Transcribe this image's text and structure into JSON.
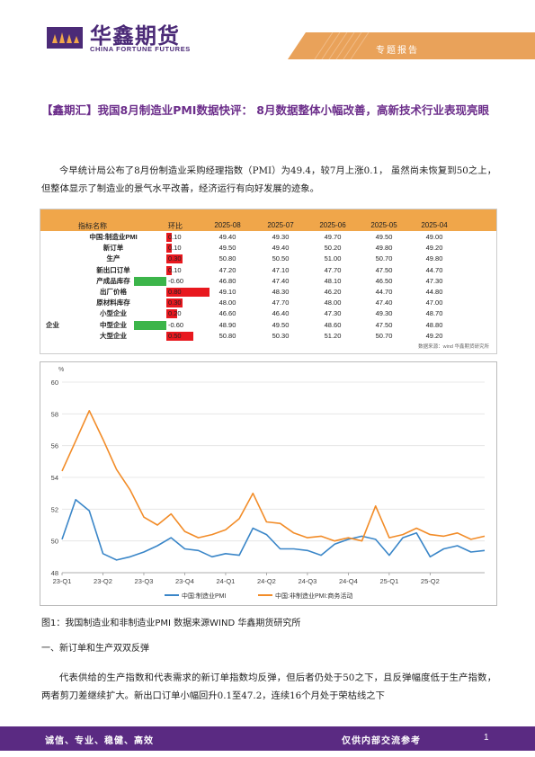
{
  "header": {
    "brand_cn": "华鑫期货",
    "brand_en": "CHINA FORTUNE FUTURES",
    "tag": "专题报告"
  },
  "title": "【鑫期汇】我国8月制造业PMI数据快评： 8月数据整体小幅改善，高新技术行业表现亮眼",
  "intro": "今早统计局公布了8月份制造业采购经理指数（PMI）为49.4，较7月上涨0.1， 虽然尚未恢复到50之上，但整体显示了制造业的景气水平改善，经济运行有向好发展的迹象。",
  "table": {
    "headers": [
      "指标名称",
      "环比",
      "2025-08",
      "2025-07",
      "2025-06",
      "2025-05",
      "2025-04"
    ],
    "rows": [
      {
        "group": "",
        "name": "中国:制造业PMI",
        "change": "0.10",
        "v": [
          "49.40",
          "49.30",
          "49.70",
          "49.50",
          "49.00"
        ],
        "dir": "up"
      },
      {
        "group": "",
        "name": "新订单",
        "change": "0.10",
        "v": [
          "49.50",
          "49.40",
          "50.20",
          "49.80",
          "49.20"
        ],
        "dir": "up"
      },
      {
        "group": "",
        "name": "生产",
        "change": "0.30",
        "v": [
          "50.80",
          "50.50",
          "51.00",
          "50.70",
          "49.80"
        ],
        "dir": "up"
      },
      {
        "group": "",
        "name": "新出口订单",
        "change": "0.10",
        "v": [
          "47.20",
          "47.10",
          "47.70",
          "47.50",
          "44.70"
        ],
        "dir": "up"
      },
      {
        "group": "",
        "name": "产成品库存",
        "change": "-0.60",
        "v": [
          "46.80",
          "47.40",
          "48.10",
          "46.50",
          "47.30"
        ],
        "dir": "down"
      },
      {
        "group": "",
        "name": "出厂价格",
        "change": "0.80",
        "v": [
          "49.10",
          "48.30",
          "46.20",
          "44.70",
          "44.80"
        ],
        "dir": "up"
      },
      {
        "group": "",
        "name": "原材料库存",
        "change": "0.30",
        "v": [
          "48.00",
          "47.70",
          "48.00",
          "47.40",
          "47.00"
        ],
        "dir": "up"
      },
      {
        "group": "",
        "name": "小型企业",
        "change": "0.20",
        "v": [
          "46.60",
          "46.40",
          "47.30",
          "49.30",
          "48.70"
        ],
        "dir": "up"
      },
      {
        "group": "企业",
        "name": "中型企业",
        "change": "-0.60",
        "v": [
          "48.90",
          "49.50",
          "48.60",
          "47.50",
          "48.80"
        ],
        "dir": "down"
      },
      {
        "group": "",
        "name": "大型企业",
        "change": "0.50",
        "v": [
          "50.80",
          "50.30",
          "51.20",
          "50.70",
          "49.20"
        ],
        "dir": "up"
      }
    ],
    "source": "数据来源：wind 华鑫期货研究所",
    "colors": {
      "header": "#f0a64a",
      "up": "#e8181e",
      "down": "#3cb54a"
    }
  },
  "chart_data": {
    "type": "line",
    "ylabel": "%",
    "ylim": [
      48,
      60
    ],
    "yticks": [
      48,
      50,
      52,
      54,
      56,
      58,
      60
    ],
    "xticks": [
      "23-Q1",
      "23-Q2",
      "23-Q3",
      "23-Q4",
      "24-Q1",
      "24-Q2",
      "24-Q3",
      "24-Q4",
      "25-Q1",
      "25-Q2"
    ],
    "x": [
      "2023-01",
      "2023-02",
      "2023-03",
      "2023-04",
      "2023-05",
      "2023-06",
      "2023-07",
      "2023-08",
      "2023-09",
      "2023-10",
      "2023-11",
      "2023-12",
      "2024-01",
      "2024-02",
      "2024-03",
      "2024-04",
      "2024-05",
      "2024-06",
      "2024-07",
      "2024-08",
      "2024-09",
      "2024-10",
      "2024-11",
      "2024-12",
      "2025-01",
      "2025-02",
      "2025-03",
      "2025-04",
      "2025-05",
      "2025-06",
      "2025-07",
      "2025-08"
    ],
    "series": [
      {
        "name": "中国:制造业PMI",
        "color": "#3a86c8",
        "values": [
          50.1,
          52.6,
          51.9,
          49.2,
          48.8,
          49.0,
          49.3,
          49.7,
          50.2,
          49.5,
          49.4,
          49.0,
          49.2,
          49.1,
          50.8,
          50.4,
          49.5,
          49.5,
          49.4,
          49.1,
          49.8,
          50.1,
          50.3,
          50.1,
          49.1,
          50.2,
          50.5,
          49.0,
          49.5,
          49.7,
          49.3,
          49.4
        ]
      },
      {
        "name": "中国:非制造业PMI:商务活动",
        "color": "#f28c28",
        "values": [
          54.4,
          56.3,
          58.2,
          56.4,
          54.5,
          53.2,
          51.5,
          51.0,
          51.7,
          50.6,
          50.2,
          50.4,
          50.7,
          51.4,
          53.0,
          51.2,
          51.1,
          50.5,
          50.2,
          50.3,
          50.0,
          50.2,
          50.0,
          52.2,
          50.2,
          50.4,
          50.8,
          50.4,
          50.3,
          50.5,
          50.1,
          50.3
        ]
      }
    ]
  },
  "caption": "图1：我国制造业和非制造业PMI 数据来源WIND 华鑫期货研究所",
  "section_title": "一、新订单和生产双双反弹",
  "section_para": "代表供给的生产指数和代表需求的新订单指数均反弹，但后者仍处于50之下，且反弹幅度低于生产指数，两者剪刀差继续扩大。新出口订单小幅回升0.1至47.2，连续16个月处于荣枯线之下",
  "footer": {
    "left": "诚信、专业、稳健、高效",
    "right": "仅供内部交流参考",
    "page": "1"
  }
}
